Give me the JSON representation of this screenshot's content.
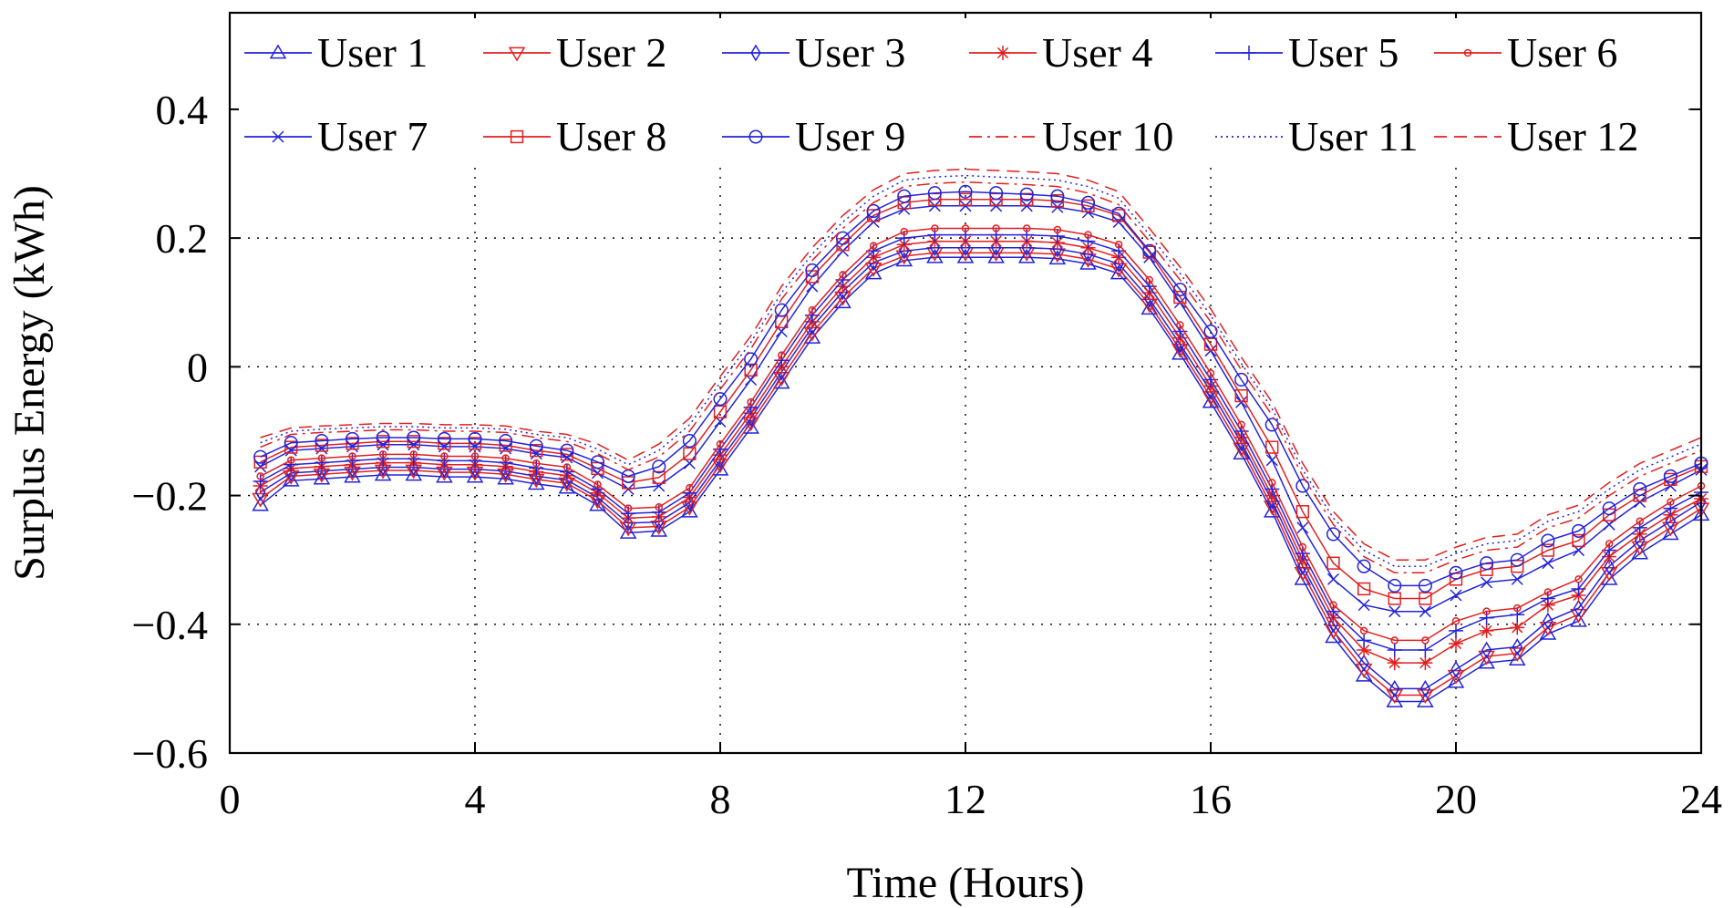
{
  "chart_data": {
    "type": "line",
    "title": "",
    "xlabel": "Time (Hours)",
    "ylabel": "Surplus Energy (kWh)",
    "xlim": [
      0,
      24
    ],
    "ylim": [
      -0.6,
      0.55
    ],
    "xticks": [
      0,
      4,
      8,
      12,
      16,
      20,
      24
    ],
    "xtick_labels": [
      "0",
      "4",
      "8",
      "12",
      "16",
      "20",
      "24"
    ],
    "yticks": [
      0.4,
      0.2,
      0,
      -0.2,
      -0.4,
      -0.6
    ],
    "ytick_labels": [
      "0.4",
      "0.2",
      "0",
      "−0.2",
      "−0.4",
      "−0.6"
    ],
    "grid": true,
    "legend_position": "top",
    "colors": {
      "blue": "#2323d8",
      "red": "#e02020"
    },
    "x": [
      0.5,
      1,
      1.5,
      2,
      2.5,
      3,
      3.5,
      4,
      4.5,
      5,
      5.5,
      6,
      6.5,
      7,
      7.5,
      8,
      8.5,
      9,
      9.5,
      10,
      10.5,
      11,
      11.5,
      12,
      12.5,
      13,
      13.5,
      14,
      14.5,
      15,
      15.5,
      16,
      16.5,
      17,
      17.5,
      18,
      18.5,
      19,
      19.5,
      20,
      20.5,
      21,
      21.5,
      22,
      22.5,
      23,
      23.5,
      24
    ],
    "series": [
      {
        "name": "User 1",
        "color": "blue",
        "dash": "solid",
        "marker": "triangle-up",
        "values": [
          -0.215,
          -0.177,
          -0.174,
          -0.171,
          -0.168,
          -0.168,
          -0.171,
          -0.171,
          -0.174,
          -0.182,
          -0.188,
          -0.215,
          -0.258,
          -0.255,
          -0.225,
          -0.16,
          -0.095,
          -0.025,
          0.045,
          0.1,
          0.145,
          0.165,
          0.17,
          0.17,
          0.17,
          0.17,
          0.168,
          0.16,
          0.145,
          0.09,
          0.02,
          -0.055,
          -0.135,
          -0.225,
          -0.33,
          -0.42,
          -0.48,
          -0.52,
          -0.52,
          -0.49,
          -0.46,
          -0.455,
          -0.415,
          -0.395,
          -0.33,
          -0.29,
          -0.26,
          -0.23
        ]
      },
      {
        "name": "User 2",
        "color": "red",
        "dash": "solid",
        "marker": "triangle-down",
        "values": [
          -0.205,
          -0.17,
          -0.167,
          -0.164,
          -0.161,
          -0.161,
          -0.164,
          -0.164,
          -0.167,
          -0.175,
          -0.181,
          -0.208,
          -0.25,
          -0.248,
          -0.218,
          -0.152,
          -0.087,
          -0.017,
          0.053,
          0.108,
          0.153,
          0.172,
          0.177,
          0.177,
          0.177,
          0.177,
          0.175,
          0.167,
          0.152,
          0.097,
          0.027,
          -0.047,
          -0.127,
          -0.217,
          -0.32,
          -0.41,
          -0.47,
          -0.51,
          -0.51,
          -0.48,
          -0.45,
          -0.445,
          -0.405,
          -0.385,
          -0.32,
          -0.28,
          -0.25,
          -0.22
        ]
      },
      {
        "name": "User 3",
        "color": "blue",
        "dash": "solid",
        "marker": "diamond",
        "values": [
          -0.195,
          -0.165,
          -0.162,
          -0.159,
          -0.156,
          -0.156,
          -0.159,
          -0.159,
          -0.162,
          -0.17,
          -0.176,
          -0.203,
          -0.243,
          -0.241,
          -0.211,
          -0.145,
          -0.08,
          -0.008,
          0.062,
          0.117,
          0.162,
          0.18,
          0.185,
          0.185,
          0.185,
          0.185,
          0.183,
          0.175,
          0.16,
          0.105,
          0.035,
          -0.038,
          -0.118,
          -0.208,
          -0.31,
          -0.4,
          -0.46,
          -0.5,
          -0.5,
          -0.47,
          -0.44,
          -0.435,
          -0.395,
          -0.375,
          -0.31,
          -0.27,
          -0.24,
          -0.21
        ]
      },
      {
        "name": "User 4",
        "color": "red",
        "dash": "solid",
        "marker": "asterisk",
        "values": [
          -0.185,
          -0.158,
          -0.155,
          -0.152,
          -0.149,
          -0.149,
          -0.152,
          -0.152,
          -0.155,
          -0.163,
          -0.169,
          -0.196,
          -0.235,
          -0.233,
          -0.203,
          -0.137,
          -0.072,
          0.0,
          0.07,
          0.125,
          0.17,
          0.19,
          0.195,
          0.195,
          0.195,
          0.195,
          0.193,
          0.185,
          0.17,
          0.115,
          0.045,
          -0.03,
          -0.11,
          -0.2,
          -0.3,
          -0.39,
          -0.44,
          -0.46,
          -0.46,
          -0.43,
          -0.41,
          -0.405,
          -0.37,
          -0.355,
          -0.295,
          -0.26,
          -0.23,
          -0.205
        ]
      },
      {
        "name": "User 5",
        "color": "blue",
        "dash": "solid",
        "marker": "plus",
        "values": [
          -0.178,
          -0.152,
          -0.149,
          -0.146,
          -0.143,
          -0.143,
          -0.146,
          -0.146,
          -0.149,
          -0.157,
          -0.163,
          -0.19,
          -0.228,
          -0.226,
          -0.196,
          -0.128,
          -0.063,
          0.01,
          0.08,
          0.135,
          0.18,
          0.2,
          0.205,
          0.205,
          0.205,
          0.205,
          0.203,
          0.195,
          0.18,
          0.125,
          0.055,
          -0.02,
          -0.1,
          -0.19,
          -0.29,
          -0.38,
          -0.425,
          -0.44,
          -0.44,
          -0.41,
          -0.39,
          -0.385,
          -0.36,
          -0.345,
          -0.285,
          -0.25,
          -0.22,
          -0.195
        ]
      },
      {
        "name": "User 6",
        "color": "red",
        "dash": "solid",
        "marker": "dot",
        "values": [
          -0.17,
          -0.145,
          -0.142,
          -0.139,
          -0.136,
          -0.136,
          -0.139,
          -0.139,
          -0.142,
          -0.15,
          -0.156,
          -0.183,
          -0.22,
          -0.218,
          -0.188,
          -0.12,
          -0.055,
          0.018,
          0.088,
          0.143,
          0.188,
          0.21,
          0.215,
          0.215,
          0.215,
          0.215,
          0.213,
          0.205,
          0.19,
          0.135,
          0.065,
          -0.01,
          -0.09,
          -0.18,
          -0.28,
          -0.37,
          -0.41,
          -0.425,
          -0.425,
          -0.395,
          -0.38,
          -0.375,
          -0.35,
          -0.33,
          -0.275,
          -0.24,
          -0.21,
          -0.185
        ]
      },
      {
        "name": "User 7",
        "color": "blue",
        "dash": "solid",
        "marker": "cross",
        "values": [
          -0.155,
          -0.13,
          -0.127,
          -0.124,
          -0.121,
          -0.121,
          -0.124,
          -0.124,
          -0.127,
          -0.135,
          -0.141,
          -0.165,
          -0.19,
          -0.185,
          -0.15,
          -0.085,
          -0.02,
          0.055,
          0.125,
          0.18,
          0.225,
          0.245,
          0.25,
          0.25,
          0.25,
          0.25,
          0.248,
          0.24,
          0.225,
          0.17,
          0.1,
          0.025,
          -0.055,
          -0.145,
          -0.25,
          -0.33,
          -0.37,
          -0.38,
          -0.38,
          -0.355,
          -0.335,
          -0.33,
          -0.305,
          -0.285,
          -0.245,
          -0.21,
          -0.185,
          -0.16
        ]
      },
      {
        "name": "User 8",
        "color": "red",
        "dash": "solid",
        "marker": "square",
        "values": [
          -0.148,
          -0.125,
          -0.122,
          -0.119,
          -0.116,
          -0.116,
          -0.119,
          -0.119,
          -0.122,
          -0.13,
          -0.136,
          -0.158,
          -0.18,
          -0.172,
          -0.135,
          -0.07,
          -0.005,
          0.07,
          0.14,
          0.19,
          0.235,
          0.255,
          0.26,
          0.26,
          0.26,
          0.26,
          0.258,
          0.25,
          0.235,
          0.178,
          0.108,
          0.035,
          -0.045,
          -0.125,
          -0.225,
          -0.305,
          -0.345,
          -0.36,
          -0.36,
          -0.33,
          -0.315,
          -0.31,
          -0.285,
          -0.27,
          -0.23,
          -0.2,
          -0.175,
          -0.155
        ]
      },
      {
        "name": "User 9",
        "color": "blue",
        "dash": "solid",
        "marker": "circle",
        "values": [
          -0.14,
          -0.118,
          -0.115,
          -0.112,
          -0.11,
          -0.11,
          -0.112,
          -0.112,
          -0.115,
          -0.123,
          -0.13,
          -0.148,
          -0.17,
          -0.155,
          -0.115,
          -0.05,
          0.012,
          0.088,
          0.15,
          0.2,
          0.242,
          0.265,
          0.27,
          0.272,
          0.27,
          0.268,
          0.265,
          0.255,
          0.238,
          0.18,
          0.12,
          0.055,
          -0.02,
          -0.09,
          -0.185,
          -0.26,
          -0.31,
          -0.34,
          -0.34,
          -0.32,
          -0.305,
          -0.3,
          -0.27,
          -0.255,
          -0.22,
          -0.19,
          -0.17,
          -0.15
        ]
      },
      {
        "name": "User 10",
        "color": "red",
        "dash": "dashdot",
        "marker": "none",
        "values": [
          -0.125,
          -0.105,
          -0.102,
          -0.1,
          -0.098,
          -0.098,
          -0.1,
          -0.1,
          -0.102,
          -0.11,
          -0.116,
          -0.135,
          -0.16,
          -0.14,
          -0.1,
          -0.035,
          0.028,
          0.105,
          0.165,
          0.215,
          0.255,
          0.28,
          0.285,
          0.287,
          0.285,
          0.283,
          0.28,
          0.27,
          0.252,
          0.195,
          0.135,
          0.07,
          -0.005,
          -0.075,
          -0.17,
          -0.245,
          -0.295,
          -0.32,
          -0.32,
          -0.3,
          -0.285,
          -0.28,
          -0.25,
          -0.235,
          -0.2,
          -0.17,
          -0.15,
          -0.13
        ]
      },
      {
        "name": "User 11",
        "color": "blue",
        "dash": "dotted",
        "marker": "none",
        "values": [
          -0.118,
          -0.1,
          -0.097,
          -0.095,
          -0.093,
          -0.093,
          -0.095,
          -0.095,
          -0.097,
          -0.105,
          -0.11,
          -0.128,
          -0.152,
          -0.13,
          -0.09,
          -0.025,
          0.038,
          0.115,
          0.175,
          0.225,
          0.265,
          0.29,
          0.295,
          0.297,
          0.295,
          0.293,
          0.29,
          0.28,
          0.262,
          0.205,
          0.145,
          0.08,
          0.005,
          -0.065,
          -0.16,
          -0.235,
          -0.285,
          -0.31,
          -0.31,
          -0.29,
          -0.275,
          -0.27,
          -0.24,
          -0.225,
          -0.19,
          -0.16,
          -0.14,
          -0.12
        ]
      },
      {
        "name": "User 12",
        "color": "red",
        "dash": "dashed",
        "marker": "none",
        "values": [
          -0.11,
          -0.095,
          -0.092,
          -0.09,
          -0.088,
          -0.088,
          -0.09,
          -0.09,
          -0.092,
          -0.1,
          -0.105,
          -0.12,
          -0.145,
          -0.12,
          -0.08,
          -0.015,
          0.048,
          0.125,
          0.185,
          0.235,
          0.275,
          0.3,
          0.305,
          0.307,
          0.305,
          0.303,
          0.3,
          0.29,
          0.272,
          0.215,
          0.155,
          0.09,
          0.015,
          -0.055,
          -0.15,
          -0.225,
          -0.275,
          -0.3,
          -0.3,
          -0.28,
          -0.265,
          -0.26,
          -0.23,
          -0.215,
          -0.18,
          -0.15,
          -0.13,
          -0.11
        ]
      }
    ]
  }
}
